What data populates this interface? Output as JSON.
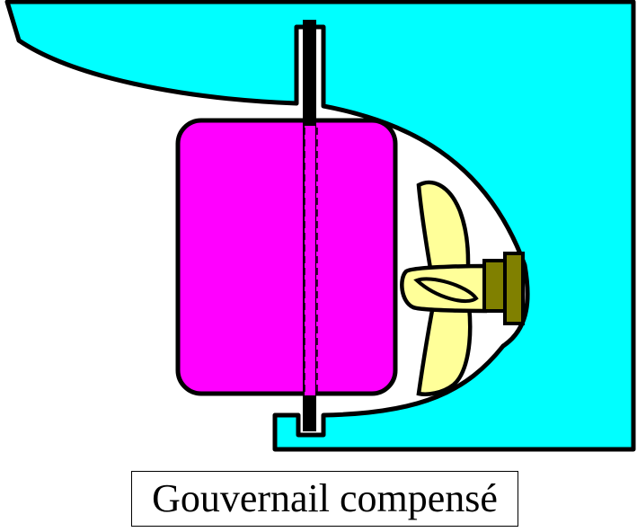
{
  "caption": "Gouvernail compensé",
  "colors": {
    "hull": "#00FFFF",
    "rudder": "#FF00FF",
    "propeller": "#FFFF99",
    "shaft_hub": "#808000",
    "outline": "#000000",
    "background": "#FFFFFF"
  },
  "parts": [
    "hull",
    "rudder-stock",
    "rudder-blade",
    "propeller",
    "propeller-hub",
    "stern-tube"
  ]
}
